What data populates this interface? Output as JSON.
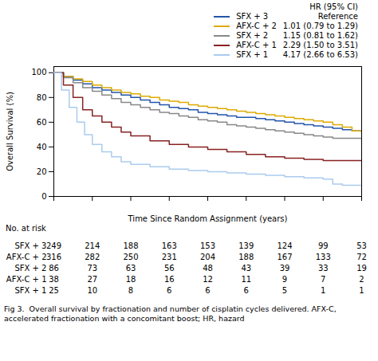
{
  "chart_data": {
    "type": "step",
    "xlabel": "Time Since Random Assignment (years)",
    "ylabel": "Overall Survival (%)",
    "xlim": [
      0,
      8
    ],
    "ylim": [
      0,
      105
    ],
    "xticks": [
      0,
      1,
      2,
      3,
      4,
      5,
      6,
      7,
      8
    ],
    "yticks": [
      0,
      20,
      40,
      60,
      80,
      100
    ],
    "tick_labels": "y",
    "grid": false,
    "legend": "top",
    "legend_title": "HR (95% CI)",
    "series": [
      {
        "name": "SFX + 3",
        "color": "#2255AA",
        "hr": "Reference",
        "x": [
          0,
          0.25,
          0.5,
          0.75,
          1.0,
          1.25,
          1.5,
          1.75,
          2.0,
          2.25,
          2.5,
          2.75,
          3.0,
          3.25,
          3.5,
          3.75,
          4.0,
          4.25,
          4.5,
          4.75,
          5.0,
          5.25,
          5.5,
          5.75,
          6.0,
          6.25,
          6.5,
          6.75,
          7.0,
          7.25,
          7.5,
          7.75,
          8.0
        ],
        "values": [
          100,
          97,
          94,
          91,
          88,
          86,
          84,
          82,
          80,
          78,
          76,
          74,
          72,
          71,
          70,
          68,
          67,
          66,
          65,
          64,
          64,
          63,
          62,
          61,
          60,
          59,
          58,
          57,
          56,
          55,
          54,
          53,
          52
        ]
      },
      {
        "name": "AFX-C + 2",
        "color": "#DDAA00",
        "hr": "1.01 (0.79 to 1.29)",
        "x": [
          0,
          0.25,
          0.5,
          0.75,
          1.0,
          1.25,
          1.5,
          1.75,
          2.0,
          2.25,
          2.5,
          2.75,
          3.0,
          3.25,
          3.5,
          3.75,
          4.0,
          4.25,
          4.5,
          4.75,
          5.0,
          5.25,
          5.5,
          5.75,
          6.0,
          6.25,
          6.5,
          6.75,
          7.0,
          7.25,
          7.5,
          7.75,
          8.0
        ],
        "values": [
          100,
          97,
          95,
          93,
          90,
          88,
          86,
          84,
          83,
          81,
          80,
          78,
          77,
          76,
          74,
          73,
          72,
          71,
          70,
          69,
          68,
          67,
          66,
          65,
          64,
          63,
          62,
          61,
          60,
          58,
          56,
          53,
          51
        ]
      },
      {
        "name": "SFX + 2",
        "color": "#888888",
        "hr": "1.15 (0.81 to 1.62)",
        "x": [
          0,
          0.25,
          0.5,
          0.75,
          1.0,
          1.25,
          1.5,
          1.75,
          2.0,
          2.25,
          2.5,
          2.75,
          3.0,
          3.25,
          3.5,
          3.75,
          4.0,
          4.25,
          4.5,
          4.75,
          5.0,
          5.25,
          5.5,
          5.75,
          6.0,
          6.25,
          6.5,
          6.75,
          7.0,
          7.25,
          7.5,
          7.75,
          8.0
        ],
        "values": [
          100,
          96,
          92,
          88,
          85,
          82,
          79,
          76,
          74,
          72,
          70,
          68,
          67,
          65,
          64,
          62,
          61,
          60,
          58,
          57,
          56,
          55,
          54,
          53,
          52,
          51,
          50,
          49,
          48,
          47,
          47,
          47,
          46
        ]
      },
      {
        "name": "AFX-C + 1",
        "color": "#882222",
        "hr": "2.29 (1.50 to 3.51)",
        "x": [
          0,
          0.25,
          0.5,
          0.75,
          1.0,
          1.25,
          1.5,
          1.75,
          2.0,
          2.5,
          3.0,
          3.5,
          4.0,
          4.5,
          5.0,
          5.5,
          6.0,
          6.5,
          7.0,
          7.5,
          8.0
        ],
        "values": [
          100,
          90,
          80,
          70,
          65,
          60,
          56,
          52,
          49,
          45,
          42,
          40,
          38,
          36,
          34,
          32,
          31,
          30,
          29,
          29,
          29
        ]
      },
      {
        "name": "SFX + 1",
        "color": "#AACCEE",
        "hr": "4.17 (2.66 to 6.53)",
        "x": [
          0,
          0.2,
          0.4,
          0.6,
          0.8,
          1.0,
          1.25,
          1.5,
          1.75,
          2.0,
          2.5,
          3.0,
          3.5,
          4.0,
          4.5,
          5.0,
          5.5,
          6.0,
          6.5,
          7.0,
          7.25,
          7.5,
          8.0
        ],
        "values": [
          100,
          86,
          72,
          60,
          50,
          42,
          36,
          32,
          28,
          26,
          24,
          22,
          21,
          20,
          19,
          18,
          17,
          16,
          15,
          14,
          10,
          9,
          9
        ]
      }
    ],
    "at_risk": {
      "title": "No. at risk",
      "labels": [
        "SFX + 3",
        "AFX-C + 2",
        "SFX + 2",
        "AFX-C + 1",
        "SFX + 1"
      ],
      "times": [
        0,
        1,
        2,
        3,
        4,
        5,
        6,
        7,
        8
      ],
      "values": [
        [
          249,
          214,
          188,
          163,
          153,
          139,
          124,
          99,
          53
        ],
        [
          316,
          282,
          250,
          231,
          204,
          188,
          167,
          133,
          72
        ],
        [
          86,
          73,
          63,
          56,
          48,
          43,
          39,
          33,
          19
        ],
        [
          38,
          27,
          18,
          16,
          12,
          11,
          9,
          7,
          2
        ],
        [
          25,
          10,
          8,
          6,
          6,
          6,
          5,
          1,
          1
        ]
      ]
    },
    "caption": "Fig 3.  Overall survival by fractionation and number of cisplatin cycles delivered. AFX-C, accelerated fractionation with a concomitant boost; HR, hazard"
  }
}
